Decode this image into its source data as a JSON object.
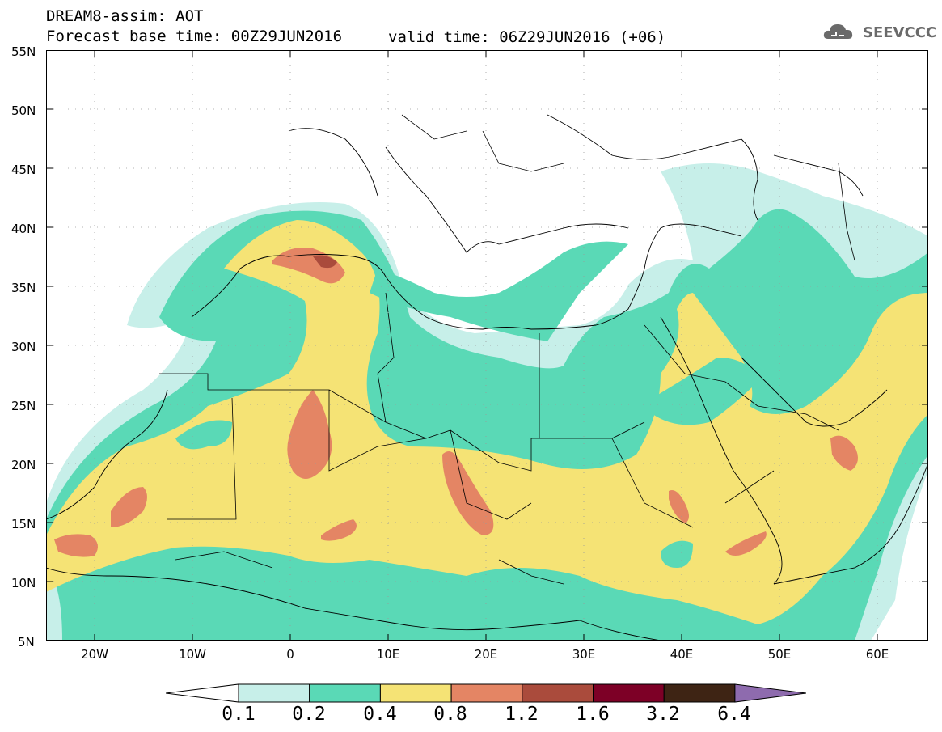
{
  "header": {
    "title": "DREAM8-assim: AOT",
    "base_time": "Forecast base time: 00Z29JUN2016",
    "valid_time": "valid time: 06Z29JUN2016 (+06)"
  },
  "logo": {
    "text": "SEEVCCC",
    "icon": "cloud-icon"
  },
  "axes": {
    "lat_labels": [
      "55N",
      "50N",
      "45N",
      "40N",
      "35N",
      "30N",
      "25N",
      "20N",
      "15N",
      "10N",
      "5N"
    ],
    "lon_labels": [
      "20W",
      "10W",
      "0",
      "10E",
      "20E",
      "30E",
      "40E",
      "50E",
      "60E"
    ]
  },
  "legend": {
    "levels": [
      "0.1",
      "0.2",
      "0.4",
      "0.8",
      "1.2",
      "1.6",
      "3.2",
      "6.4"
    ],
    "colors": [
      "#ffffff",
      "#c7efe9",
      "#5ad9b6",
      "#f5e375",
      "#e48564",
      "#aa4b3c",
      "#7d0026",
      "#3e2414",
      "#8e6bae"
    ]
  }
}
